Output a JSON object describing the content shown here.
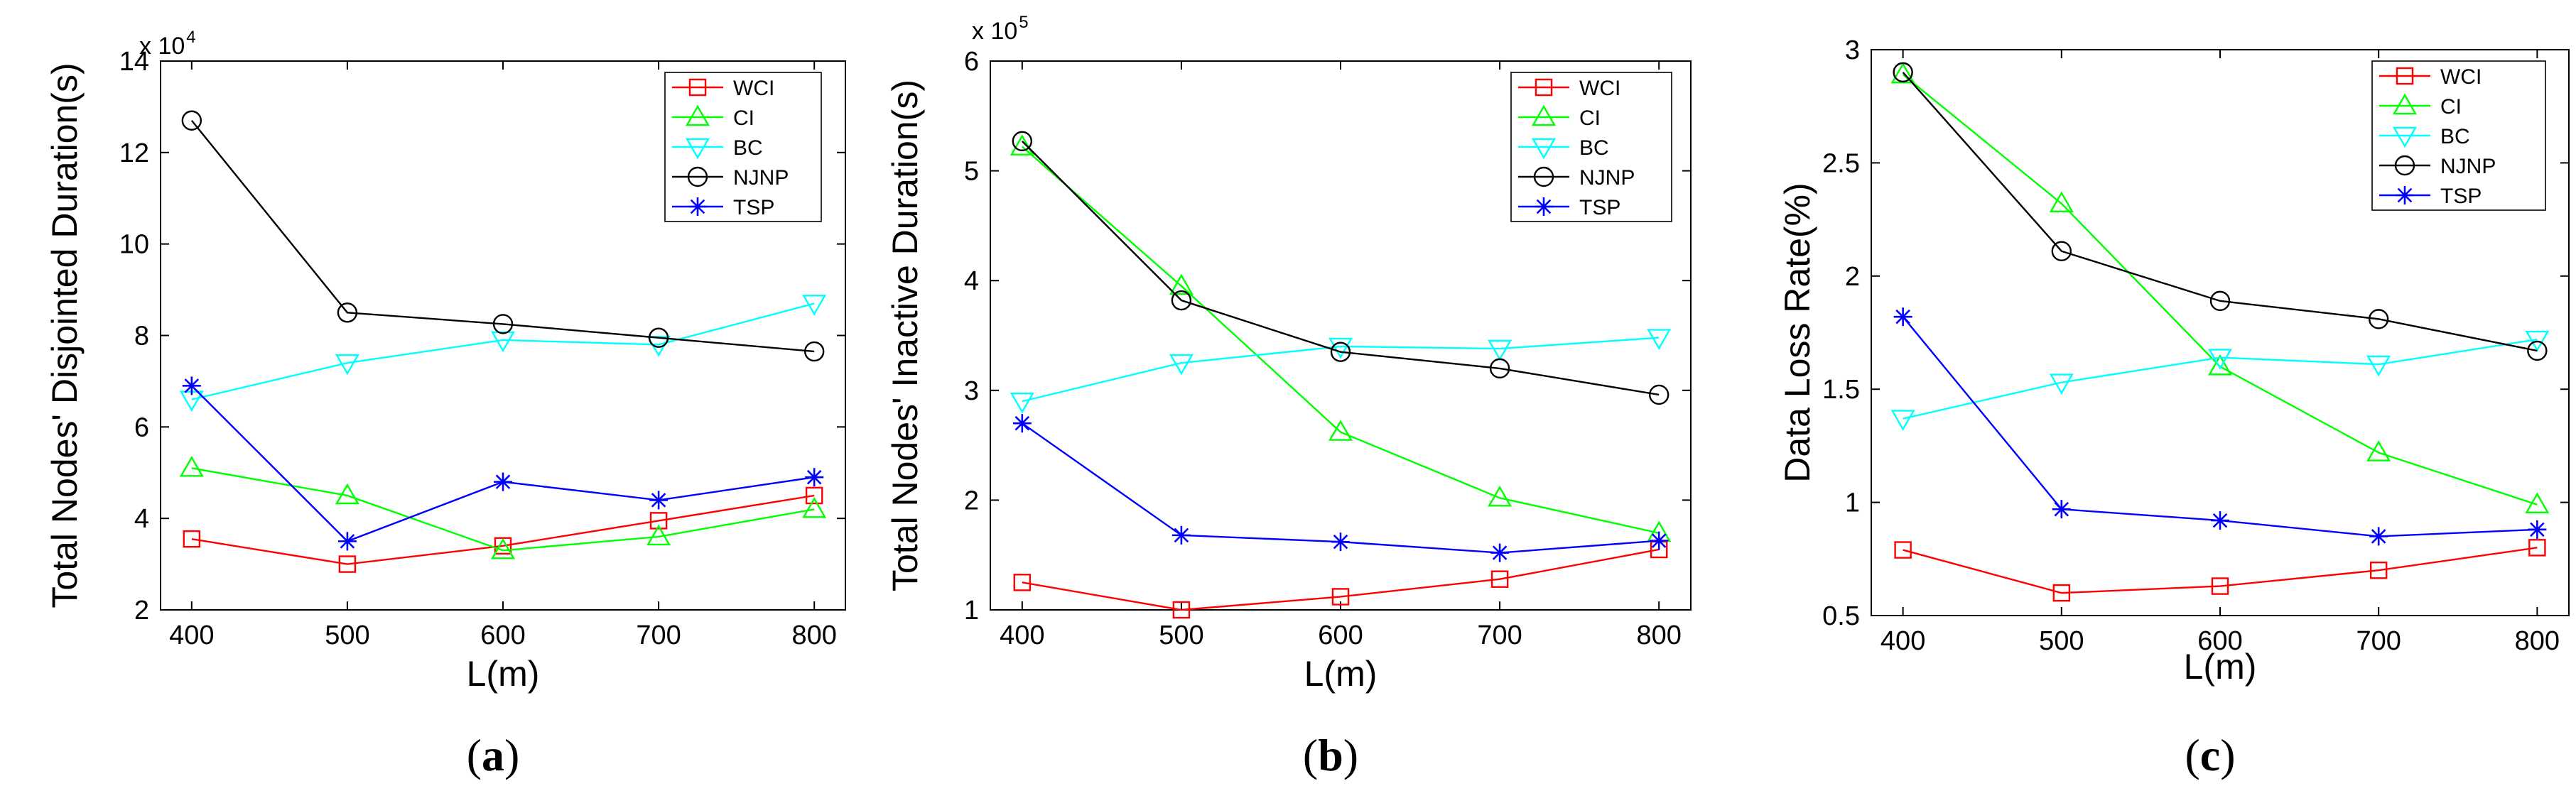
{
  "chart_data": [
    {
      "type": "line",
      "panel": "(a)",
      "caption_open": "(",
      "caption_letter": "a",
      "caption_close": ")",
      "xlabel": "L(m)",
      "ylabel": "Total Nodes' Disjointed Duration(s)",
      "multiplier_base": "x 10",
      "multiplier_exp": "4",
      "x": [
        400,
        500,
        600,
        700,
        800
      ],
      "xlim": [
        380,
        820
      ],
      "ylim": [
        2,
        14
      ],
      "xticks": [
        "400",
        "500",
        "600",
        "700",
        "800"
      ],
      "yticks": [
        2,
        4,
        6,
        8,
        10,
        12,
        14
      ],
      "ytick_labels": [
        "2",
        "4",
        "6",
        "8",
        "10",
        "12",
        "14"
      ],
      "series": [
        {
          "name": "WCI",
          "values": [
            3.55,
            3.0,
            3.4,
            3.95,
            4.5
          ]
        },
        {
          "name": "CI",
          "values": [
            5.1,
            4.5,
            3.3,
            3.6,
            4.2
          ]
        },
        {
          "name": "BC",
          "values": [
            6.6,
            7.4,
            7.9,
            7.8,
            8.7
          ]
        },
        {
          "name": "NJNP",
          "values": [
            12.7,
            8.5,
            8.25,
            7.95,
            7.65
          ]
        },
        {
          "name": "TSP",
          "values": [
            6.9,
            3.5,
            4.8,
            4.4,
            4.9
          ]
        }
      ]
    },
    {
      "type": "line",
      "panel": "(b)",
      "caption_open": "(",
      "caption_letter": "b",
      "caption_close": ")",
      "xlabel": "L(m)",
      "ylabel": "Total Nodes' Inactive Duration(s)",
      "multiplier_base": "x 10",
      "multiplier_exp": "5",
      "x": [
        400,
        500,
        600,
        700,
        800
      ],
      "xlim": [
        380,
        820
      ],
      "ylim": [
        1,
        6
      ],
      "xticks": [
        "400",
        "500",
        "600",
        "700",
        "800"
      ],
      "yticks": [
        1,
        2,
        3,
        4,
        5,
        6
      ],
      "ytick_labels": [
        "1",
        "2",
        "3",
        "4",
        "5",
        "6"
      ],
      "series": [
        {
          "name": "WCI",
          "values": [
            1.25,
            1.0,
            1.12,
            1.28,
            1.55
          ]
        },
        {
          "name": "CI",
          "values": [
            5.22,
            3.95,
            2.62,
            2.02,
            1.7
          ]
        },
        {
          "name": "BC",
          "values": [
            2.9,
            3.25,
            3.4,
            3.38,
            3.48
          ]
        },
        {
          "name": "NJNP",
          "values": [
            5.27,
            3.82,
            3.35,
            3.2,
            2.96
          ]
        },
        {
          "name": "TSP",
          "values": [
            2.7,
            1.68,
            1.62,
            1.52,
            1.63
          ]
        }
      ]
    },
    {
      "type": "line",
      "panel": "(c)",
      "caption_open": "(",
      "caption_letter": "c",
      "caption_close": ")",
      "xlabel": "L(m)",
      "ylabel": "Data Loss Rate(%)",
      "multiplier_base": "",
      "multiplier_exp": "",
      "x": [
        400,
        500,
        600,
        700,
        800
      ],
      "xlim": [
        380,
        820
      ],
      "ylim": [
        0.5,
        3
      ],
      "xticks": [
        "400",
        "500",
        "600",
        "700",
        "800"
      ],
      "yticks": [
        0.5,
        1,
        1.5,
        2,
        2.5,
        3
      ],
      "ytick_labels": [
        "0.5",
        "1",
        "1.5",
        "2",
        "2.5",
        "3"
      ],
      "series": [
        {
          "name": "WCI",
          "values": [
            0.79,
            0.6,
            0.63,
            0.7,
            0.8
          ]
        },
        {
          "name": "CI",
          "values": [
            2.89,
            2.32,
            1.6,
            1.22,
            0.99
          ]
        },
        {
          "name": "BC",
          "values": [
            1.37,
            1.53,
            1.64,
            1.61,
            1.72
          ]
        },
        {
          "name": "NJNP",
          "values": [
            2.9,
            2.11,
            1.89,
            1.81,
            1.67
          ]
        },
        {
          "name": "TSP",
          "values": [
            1.82,
            0.97,
            0.92,
            0.85,
            0.88
          ]
        }
      ]
    }
  ],
  "series_styles": [
    {
      "name": "WCI",
      "color": "#ff0000",
      "marker": "square"
    },
    {
      "name": "CI",
      "color": "#00ff00",
      "marker": "triangle-up"
    },
    {
      "name": "BC",
      "color": "#00ffff",
      "marker": "triangle-down"
    },
    {
      "name": "NJNP",
      "color": "#000000",
      "marker": "circle"
    },
    {
      "name": "TSP",
      "color": "#0000ff",
      "marker": "asterisk"
    }
  ]
}
